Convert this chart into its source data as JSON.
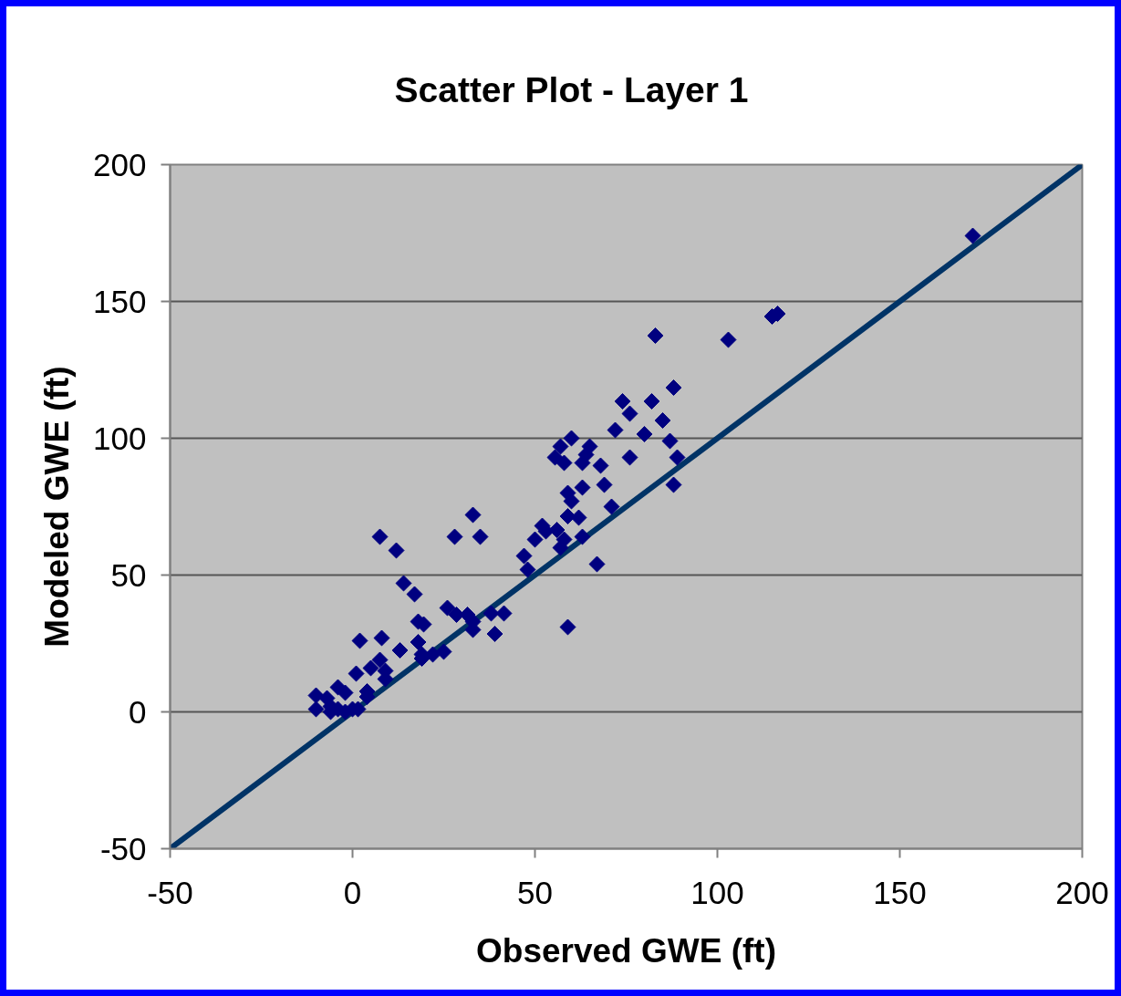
{
  "chart_data": {
    "type": "scatter",
    "title": "Scatter Plot - Layer 1",
    "xlabel": "Observed GWE (ft)",
    "ylabel": "Modeled GWE (ft)",
    "xlim": [
      -50,
      200
    ],
    "ylim": [
      -50,
      200
    ],
    "xticks": [
      -50,
      0,
      50,
      100,
      150,
      200
    ],
    "yticks": [
      -50,
      0,
      50,
      100,
      150,
      200
    ],
    "grid": "y",
    "series": [
      {
        "type": "line",
        "color": "#003366",
        "marker": "none",
        "x": [
          -50,
          200
        ],
        "values": [
          -50,
          200
        ]
      },
      {
        "color": "#000080",
        "marker": "diamond",
        "x": [
          170,
          115,
          116.5,
          103,
          83,
          74,
          82,
          88,
          76,
          85,
          72,
          80,
          87,
          89,
          88,
          76,
          60,
          57,
          55.5,
          58,
          65,
          64,
          63,
          68,
          69,
          63,
          59,
          60,
          71,
          59,
          62,
          63,
          58,
          57,
          52,
          53,
          56,
          50,
          47,
          48,
          67,
          59,
          7.5,
          12,
          28,
          33,
          35,
          14,
          17,
          18,
          19.5,
          26,
          28.5,
          31.5,
          33,
          33,
          38,
          41.5,
          39,
          2,
          8,
          13,
          18,
          19,
          19,
          22,
          25,
          7.5,
          5,
          1,
          9,
          9,
          -4,
          -2,
          4,
          4,
          -10,
          -7,
          -10,
          -6,
          -6,
          -4,
          -2,
          0,
          1.5
        ],
        "values": [
          174,
          144.5,
          145.5,
          136,
          137.5,
          113.5,
          113.5,
          118.5,
          109,
          106.5,
          103,
          101.5,
          99,
          93,
          83,
          93,
          100,
          97,
          93,
          91,
          97,
          94,
          91,
          90,
          83,
          82,
          80,
          77,
          75,
          71.5,
          71,
          64,
          63,
          60,
          68,
          66,
          66.5,
          63,
          57,
          52,
          54,
          31,
          64,
          59,
          64,
          72,
          64,
          47,
          43,
          33,
          32,
          38,
          35.5,
          35.5,
          33,
          30,
          36,
          36,
          28.5,
          26,
          27,
          22.5,
          25.5,
          21,
          19.5,
          21,
          22,
          19,
          16,
          14,
          15,
          12,
          9,
          7,
          7.5,
          5.5,
          6,
          5,
          1,
          2,
          0,
          1,
          0,
          1,
          1
        ]
      }
    ]
  }
}
